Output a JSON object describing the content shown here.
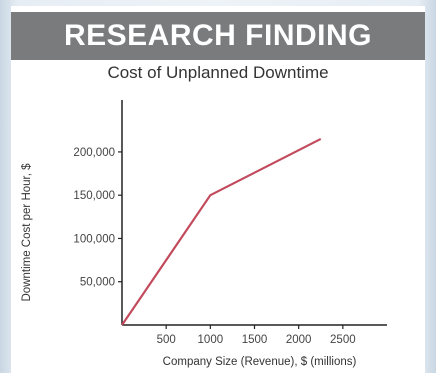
{
  "banner": "RESEARCH FINDING",
  "chart_data": {
    "type": "line",
    "title": "Cost of Unplanned Downtime",
    "xlabel": "Company Size (Revenue), $ (millions)",
    "ylabel": "Downtime Cost per Hour, $",
    "x_ticks": [
      500,
      1000,
      1500,
      2000,
      2500
    ],
    "x_tick_labels": [
      "500",
      "1000",
      "1500",
      "2000",
      "2500"
    ],
    "y_ticks": [
      50000,
      100000,
      150000,
      200000
    ],
    "y_tick_labels": [
      "50,000",
      "100,000",
      "150,000",
      "200,000"
    ],
    "xlim": [
      0,
      3000
    ],
    "ylim": [
      0,
      260000
    ],
    "grid": false,
    "series": [
      {
        "x": [
          0,
          1000,
          2250
        ],
        "y": [
          0,
          150000,
          215000
        ]
      }
    ],
    "colors": {
      "line": "#c24a5c",
      "axis": "#222222"
    }
  }
}
